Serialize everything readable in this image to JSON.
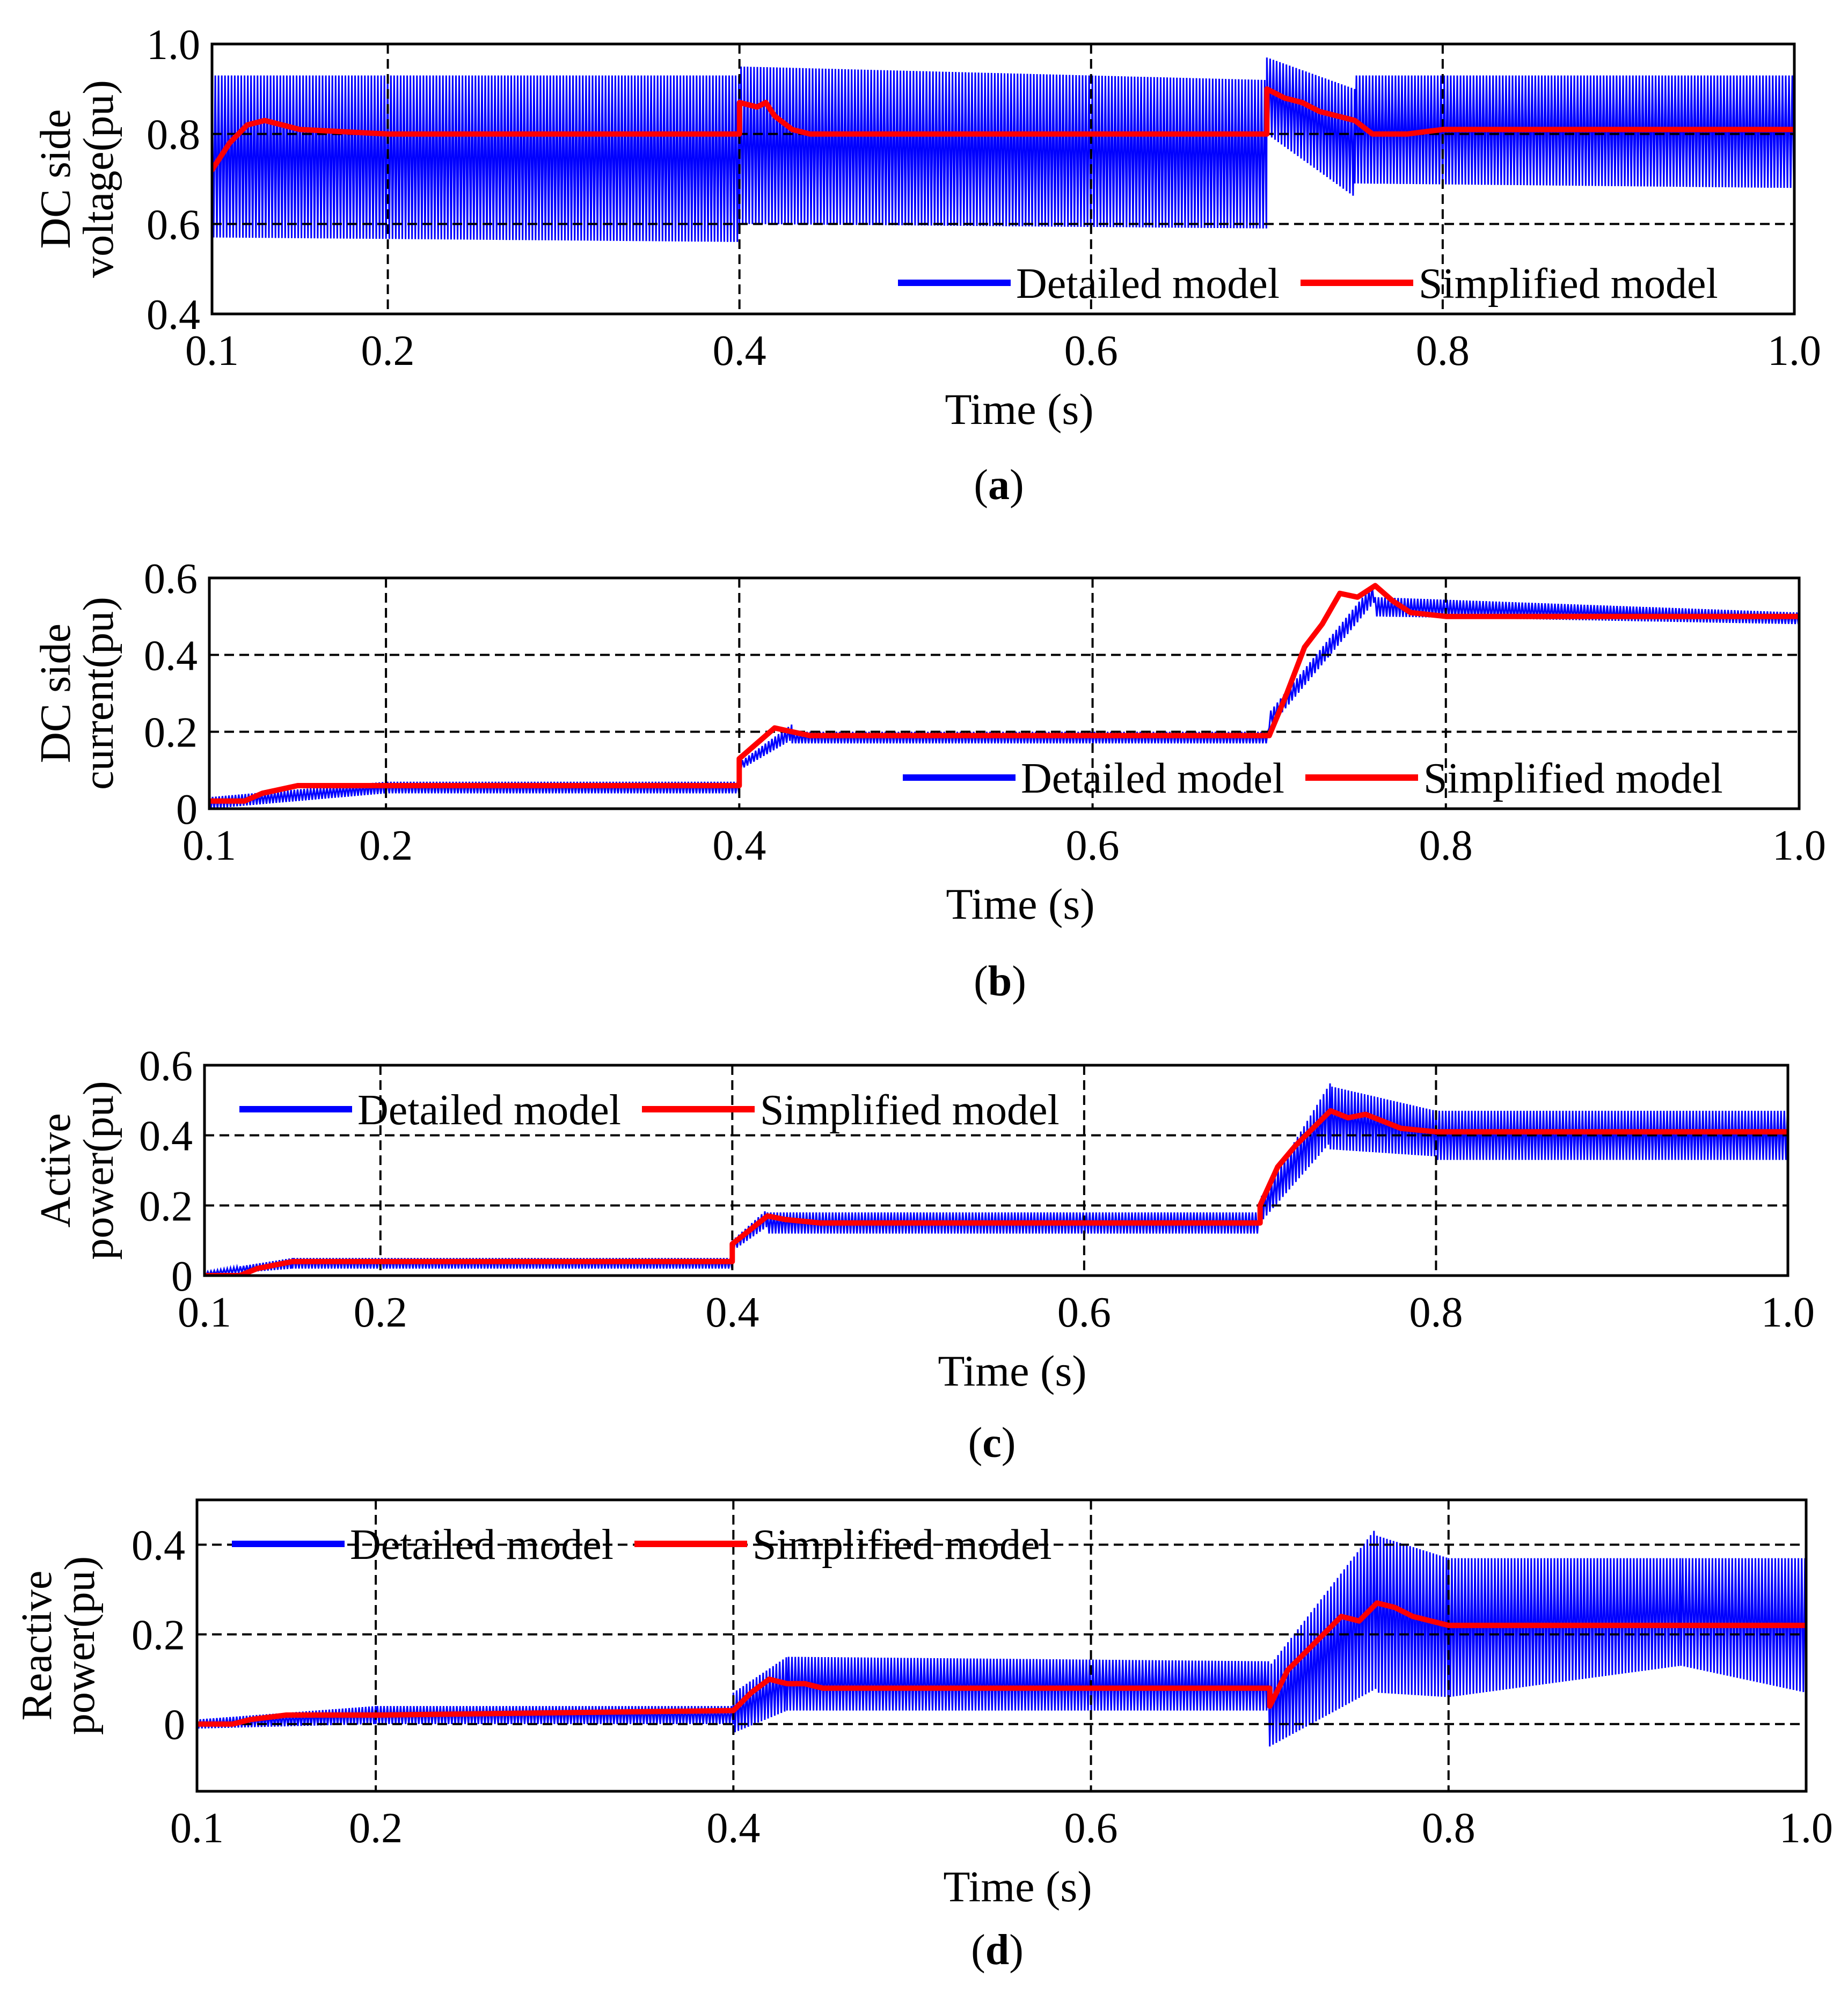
{
  "colors": {
    "detailed": "#0000ff",
    "simplified": "#ff0000",
    "grid": "#000000"
  },
  "chart_data": [
    {
      "type": "line",
      "panel": "a",
      "caption": {
        "open": "(",
        "letter": "a",
        "close": ")"
      },
      "ylabel_lines": [
        "DC side",
        "voltage(pu)"
      ],
      "xlabel": "Time (s)",
      "xlim": [
        0.1,
        1.0
      ],
      "ylim": [
        0.4,
        1.0
      ],
      "xticks": [
        0.1,
        0.2,
        0.4,
        0.6,
        0.8,
        1.0
      ],
      "xtick_labels": [
        "0.1",
        "0.2",
        "0.4",
        "0.6",
        "0.8",
        "1.0"
      ],
      "yticks": [
        0.4,
        0.6,
        0.8,
        1.0
      ],
      "ytick_labels": [
        "0.4",
        "0.6",
        "0.8",
        "1.0"
      ],
      "vgrid": [
        0.2,
        0.4,
        0.6,
        0.8
      ],
      "hgrid": [
        0.6,
        0.8
      ],
      "legend": {
        "placement": "bottom-right",
        "entries": [
          "Detailed model",
          "Simplified model"
        ]
      },
      "series": [
        {
          "name": "Detailed model",
          "style": "oscillating-band",
          "segments": [
            {
              "t0": 0.1,
              "t1": 0.4,
              "hi0": 0.93,
              "lo0": 0.57,
              "hi1": 0.93,
              "lo1": 0.56
            },
            {
              "t0": 0.4,
              "t1": 0.7,
              "hi0": 0.95,
              "lo0": 0.6,
              "hi1": 0.92,
              "lo1": 0.59
            },
            {
              "t0": 0.7,
              "t1": 0.75,
              "hi0": 0.97,
              "lo0": 0.8,
              "hi1": 0.9,
              "lo1": 0.66
            },
            {
              "t0": 0.75,
              "t1": 1.0,
              "hi0": 0.93,
              "lo0": 0.69,
              "hi1": 0.93,
              "lo1": 0.68
            }
          ]
        },
        {
          "name": "Simplified model",
          "style": "line",
          "x": [
            0.1,
            0.11,
            0.12,
            0.13,
            0.14,
            0.15,
            0.2,
            0.4,
            0.4,
            0.41,
            0.415,
            0.42,
            0.43,
            0.44,
            0.5,
            0.7,
            0.7,
            0.71,
            0.72,
            0.73,
            0.74,
            0.75,
            0.76,
            0.78,
            0.8,
            1.0
          ],
          "y": [
            0.72,
            0.78,
            0.82,
            0.83,
            0.82,
            0.81,
            0.8,
            0.8,
            0.87,
            0.86,
            0.87,
            0.84,
            0.81,
            0.8,
            0.8,
            0.8,
            0.9,
            0.88,
            0.87,
            0.85,
            0.84,
            0.83,
            0.8,
            0.8,
            0.81,
            0.81
          ]
        }
      ]
    },
    {
      "type": "line",
      "panel": "b",
      "caption": {
        "open": "(",
        "letter": "b",
        "close": ")"
      },
      "ylabel_lines": [
        "DC side",
        "current(pu)"
      ],
      "xlabel": "Time (s)",
      "xlim": [
        0.1,
        1.0
      ],
      "ylim": [
        0,
        0.6
      ],
      "xticks": [
        0.1,
        0.2,
        0.4,
        0.6,
        0.8,
        1.0
      ],
      "xtick_labels": [
        "0.1",
        "0.2",
        "0.4",
        "0.6",
        "0.8",
        "1.0"
      ],
      "yticks": [
        0,
        0.2,
        0.4,
        0.6
      ],
      "ytick_labels": [
        "0",
        "0.2",
        "0.4",
        "0.6"
      ],
      "vgrid": [
        0.2,
        0.4,
        0.6,
        0.8
      ],
      "hgrid": [
        0.2,
        0.4
      ],
      "legend": {
        "placement": "bottom-right",
        "entries": [
          "Detailed model",
          "Simplified model"
        ]
      },
      "series": [
        {
          "name": "Detailed model",
          "style": "oscillating-band",
          "segments": [
            {
              "t0": 0.1,
              "t1": 0.2,
              "hi0": 0.03,
              "lo0": 0.0,
              "hi1": 0.07,
              "lo1": 0.04
            },
            {
              "t0": 0.2,
              "t1": 0.4,
              "hi0": 0.07,
              "lo0": 0.04,
              "hi1": 0.07,
              "lo1": 0.04
            },
            {
              "t0": 0.4,
              "t1": 0.43,
              "hi0": 0.12,
              "lo0": 0.1,
              "hi1": 0.22,
              "lo1": 0.18
            },
            {
              "t0": 0.43,
              "t1": 0.7,
              "hi0": 0.2,
              "lo0": 0.17,
              "hi1": 0.2,
              "lo1": 0.17
            },
            {
              "t0": 0.7,
              "t1": 0.76,
              "hi0": 0.25,
              "lo0": 0.21,
              "hi1": 0.59,
              "lo1": 0.54
            },
            {
              "t0": 0.76,
              "t1": 1.0,
              "hi0": 0.55,
              "lo0": 0.5,
              "hi1": 0.51,
              "lo1": 0.48
            }
          ]
        },
        {
          "name": "Simplified model",
          "style": "line",
          "x": [
            0.1,
            0.12,
            0.13,
            0.15,
            0.2,
            0.4,
            0.4,
            0.41,
            0.42,
            0.43,
            0.44,
            0.45,
            0.5,
            0.7,
            0.71,
            0.72,
            0.73,
            0.74,
            0.75,
            0.76,
            0.77,
            0.78,
            0.8,
            1.0
          ],
          "y": [
            0.02,
            0.02,
            0.04,
            0.06,
            0.06,
            0.06,
            0.13,
            0.17,
            0.21,
            0.2,
            0.19,
            0.19,
            0.19,
            0.19,
            0.3,
            0.42,
            0.48,
            0.56,
            0.55,
            0.58,
            0.54,
            0.51,
            0.5,
            0.5
          ]
        }
      ]
    },
    {
      "type": "line",
      "panel": "c",
      "caption": {
        "open": "(",
        "letter": "c",
        "close": ")"
      },
      "ylabel_lines": [
        "Active",
        "power(pu)"
      ],
      "xlabel": "Time (s)",
      "xlim": [
        0.1,
        1.0
      ],
      "ylim": [
        0,
        0.6
      ],
      "xticks": [
        0.1,
        0.2,
        0.4,
        0.6,
        0.8,
        1.0
      ],
      "xtick_labels": [
        "0.1",
        "0.2",
        "0.4",
        "0.6",
        "0.8",
        "1.0"
      ],
      "yticks": [
        0,
        0.2,
        0.4,
        0.6
      ],
      "ytick_labels": [
        "0",
        "0.2",
        "0.4",
        "0.6"
      ],
      "vgrid": [
        0.2,
        0.4,
        0.6,
        0.8
      ],
      "hgrid": [
        0.2,
        0.4
      ],
      "legend": {
        "placement": "top-left",
        "entries": [
          "Detailed model",
          "Simplified model"
        ]
      },
      "series": [
        {
          "name": "Detailed model",
          "style": "oscillating-band",
          "segments": [
            {
              "t0": 0.1,
              "t1": 0.15,
              "hi0": 0.01,
              "lo0": 0.0,
              "hi1": 0.05,
              "lo1": 0.02
            },
            {
              "t0": 0.15,
              "t1": 0.4,
              "hi0": 0.05,
              "lo0": 0.02,
              "hi1": 0.05,
              "lo1": 0.02
            },
            {
              "t0": 0.4,
              "t1": 0.42,
              "hi0": 0.1,
              "lo0": 0.07,
              "hi1": 0.19,
              "lo1": 0.14
            },
            {
              "t0": 0.42,
              "t1": 0.7,
              "hi0": 0.18,
              "lo0": 0.12,
              "hi1": 0.18,
              "lo1": 0.12
            },
            {
              "t0": 0.7,
              "t1": 0.74,
              "hi0": 0.22,
              "lo0": 0.15,
              "hi1": 0.55,
              "lo1": 0.38
            },
            {
              "t0": 0.74,
              "t1": 0.8,
              "hi0": 0.54,
              "lo0": 0.36,
              "hi1": 0.47,
              "lo1": 0.34
            },
            {
              "t0": 0.8,
              "t1": 1.0,
              "hi0": 0.47,
              "lo0": 0.33,
              "hi1": 0.47,
              "lo1": 0.33
            }
          ]
        },
        {
          "name": "Simplified model",
          "style": "line",
          "x": [
            0.1,
            0.12,
            0.13,
            0.15,
            0.2,
            0.4,
            0.4,
            0.41,
            0.42,
            0.43,
            0.45,
            0.5,
            0.7,
            0.7,
            0.71,
            0.72,
            0.73,
            0.74,
            0.75,
            0.76,
            0.78,
            0.8,
            1.0
          ],
          "y": [
            0.0,
            0.0,
            0.02,
            0.04,
            0.04,
            0.04,
            0.09,
            0.13,
            0.17,
            0.16,
            0.15,
            0.15,
            0.15,
            0.2,
            0.31,
            0.37,
            0.42,
            0.47,
            0.45,
            0.46,
            0.42,
            0.41,
            0.41
          ]
        }
      ]
    },
    {
      "type": "line",
      "panel": "d",
      "caption": {
        "open": "(",
        "letter": "d",
        "close": ")"
      },
      "ylabel_lines": [
        "Reactive",
        "power(pu)"
      ],
      "xlabel": "Time (s)",
      "xlim": [
        0.1,
        1.0
      ],
      "ylim": [
        -0.15,
        0.5
      ],
      "xticks": [
        0.1,
        0.2,
        0.4,
        0.6,
        0.8,
        1.0
      ],
      "xtick_labels": [
        "0.1",
        "0.2",
        "0.4",
        "0.6",
        "0.8",
        "1.0"
      ],
      "yticks": [
        0,
        0.2,
        0.4
      ],
      "ytick_labels": [
        "0",
        "0.2",
        "0.4"
      ],
      "vgrid": [
        0.2,
        0.4,
        0.6,
        0.8
      ],
      "hgrid": [
        0,
        0.2,
        0.4
      ],
      "legend": {
        "placement": "top-left",
        "entries": [
          "Detailed model",
          "Simplified model"
        ]
      },
      "series": [
        {
          "name": "Detailed model",
          "style": "oscillating-band",
          "segments": [
            {
              "t0": 0.1,
              "t1": 0.2,
              "hi0": 0.01,
              "lo0": -0.01,
              "hi1": 0.04,
              "lo1": 0.0
            },
            {
              "t0": 0.2,
              "t1": 0.4,
              "hi0": 0.04,
              "lo0": 0.0,
              "hi1": 0.04,
              "lo1": 0.0
            },
            {
              "t0": 0.4,
              "t1": 0.43,
              "hi0": 0.07,
              "lo0": -0.02,
              "hi1": 0.15,
              "lo1": 0.03
            },
            {
              "t0": 0.43,
              "t1": 0.7,
              "hi0": 0.15,
              "lo0": 0.03,
              "hi1": 0.14,
              "lo1": 0.03
            },
            {
              "t0": 0.7,
              "t1": 0.76,
              "hi0": 0.13,
              "lo0": -0.05,
              "hi1": 0.44,
              "lo1": 0.08
            },
            {
              "t0": 0.76,
              "t1": 0.8,
              "hi0": 0.42,
              "lo0": 0.07,
              "hi1": 0.37,
              "lo1": 0.06
            },
            {
              "t0": 0.8,
              "t1": 0.93,
              "hi0": 0.37,
              "lo0": 0.06,
              "hi1": 0.37,
              "lo1": 0.13
            },
            {
              "t0": 0.93,
              "t1": 1.0,
              "hi0": 0.37,
              "lo0": 0.13,
              "hi1": 0.37,
              "lo1": 0.07
            }
          ]
        },
        {
          "name": "Simplified model",
          "style": "line",
          "x": [
            0.1,
            0.12,
            0.13,
            0.15,
            0.2,
            0.4,
            0.41,
            0.42,
            0.43,
            0.44,
            0.45,
            0.5,
            0.7,
            0.7,
            0.71,
            0.72,
            0.73,
            0.74,
            0.75,
            0.76,
            0.77,
            0.78,
            0.8,
            1.0
          ],
          "y": [
            0.0,
            0.0,
            0.01,
            0.02,
            0.02,
            0.03,
            0.07,
            0.1,
            0.09,
            0.09,
            0.08,
            0.08,
            0.08,
            0.04,
            0.12,
            0.16,
            0.2,
            0.24,
            0.23,
            0.27,
            0.26,
            0.24,
            0.22,
            0.22
          ]
        }
      ]
    }
  ]
}
